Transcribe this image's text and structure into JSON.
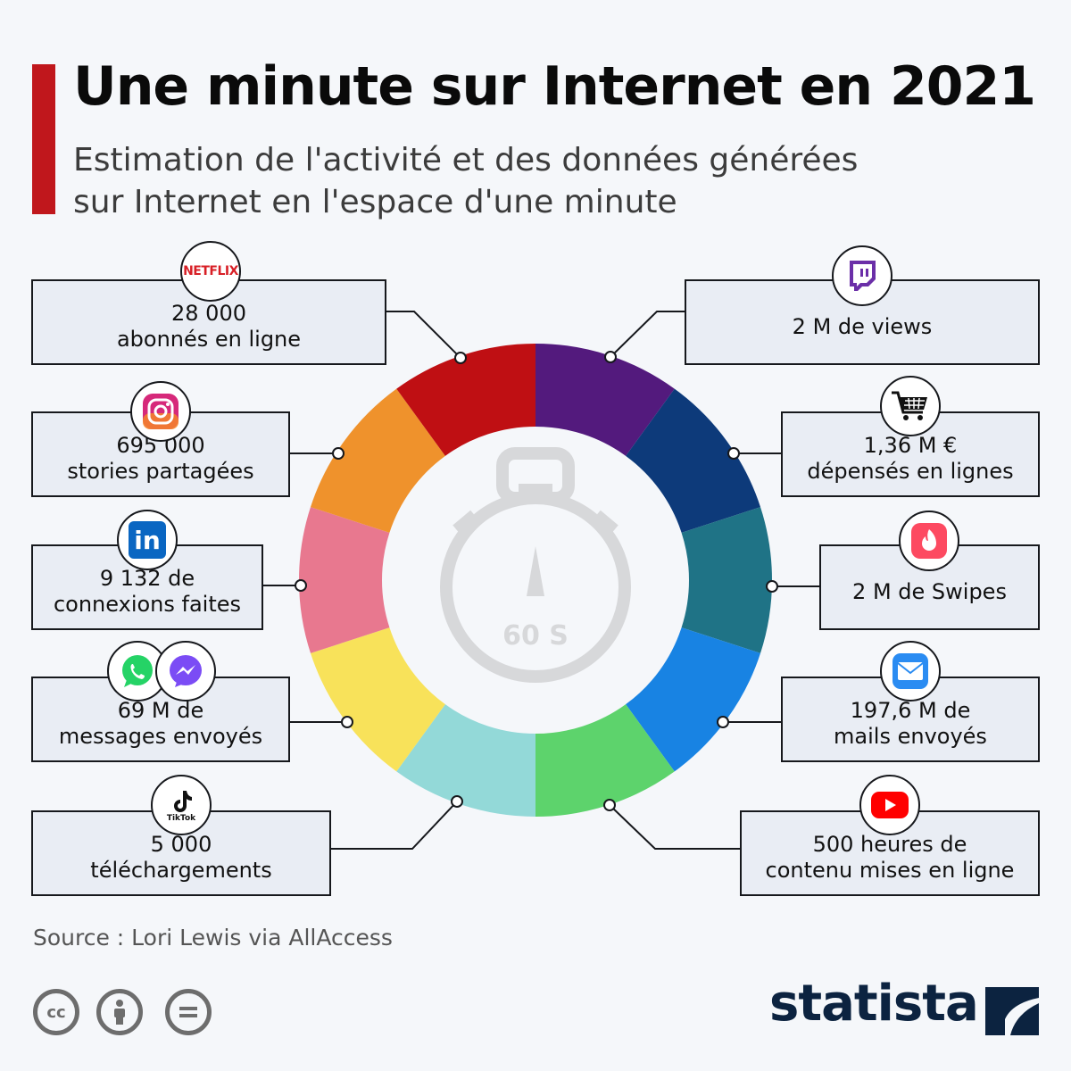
{
  "header": {
    "title": "Une minute sur Internet en 2021",
    "subtitle_line1": "Estimation de l'activité et des données générées",
    "subtitle_line2": "sur Internet en l'espace d'une minute"
  },
  "center_label": "60 S",
  "cards": {
    "netflix": {
      "value": "28 000",
      "label": "abonnés en ligne",
      "icon": "netflix-logo",
      "brand_text": "NETFLIX"
    },
    "instagram": {
      "value": "695 000",
      "label": "stories partagées",
      "icon": "instagram-icon"
    },
    "linkedin": {
      "value": "9 132 de",
      "label": "connexions faites",
      "icon": "linkedin-icon",
      "brand_text": "in"
    },
    "messaging": {
      "value": "69 M de",
      "label": "messages envoyés",
      "icon": "whatsapp-messenger-icons"
    },
    "tiktok": {
      "value": "5 000",
      "label": "téléchargements",
      "icon": "tiktok-icon",
      "brand_text": "TikTok"
    },
    "twitch": {
      "value": "2 M de views",
      "icon": "twitch-icon"
    },
    "shopping": {
      "value": "1,36 M €",
      "label": "dépensés en lignes",
      "icon": "shopping-cart-icon"
    },
    "tinder": {
      "value": "2 M de Swipes",
      "icon": "tinder-flame-icon"
    },
    "mail": {
      "value": "197,6 M de",
      "label": "mails envoyés",
      "icon": "mail-envelope-icon"
    },
    "youtube": {
      "value": "500 heures de",
      "label": "contenu mises en ligne",
      "icon": "youtube-play-icon"
    }
  },
  "chart_data": {
    "type": "pie",
    "style": "donut of 10 equal segments, clockwise from top",
    "segments": [
      {
        "service": "Twitch",
        "color": "#531a7d"
      },
      {
        "service": "Shopping",
        "color": "#0d3a7a"
      },
      {
        "service": "Tinder",
        "color": "#1f7386"
      },
      {
        "service": "Mail",
        "color": "#1883e3"
      },
      {
        "service": "YouTube",
        "color": "#5dd36c"
      },
      {
        "service": "TikTok",
        "color": "#93d9d8"
      },
      {
        "service": "Messaging",
        "color": "#f8e25a"
      },
      {
        "service": "LinkedIn",
        "color": "#e8788f"
      },
      {
        "service": "Instagram",
        "color": "#ef922c"
      },
      {
        "service": "Netflix",
        "color": "#bf0f13"
      }
    ],
    "values": [
      1,
      1,
      1,
      1,
      1,
      1,
      1,
      1,
      1,
      1
    ]
  },
  "footer": {
    "source": "Source : Lori Lewis via AllAccess",
    "license_icons": [
      "cc-icon",
      "attribution-icon",
      "no-derivatives-icon"
    ],
    "brand": "statista",
    "brand_color": "#0c2340"
  },
  "colors": {
    "accent": "#c0171c",
    "card_bg": "#e9edf4",
    "background": "#f5f7fa"
  }
}
